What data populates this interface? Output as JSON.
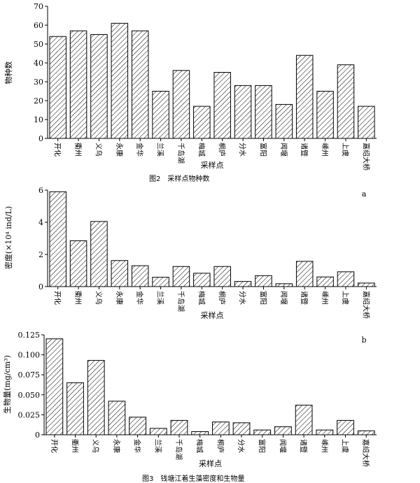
{
  "chart_data": [
    {
      "type": "bar",
      "categories": [
        "开化",
        "衢州",
        "义乌",
        "永康",
        "金华",
        "兰溪",
        "千岛湖",
        "梅城",
        "桐庐",
        "分水",
        "富阳",
        "闻堰",
        "诸暨",
        "嵊州",
        "上虞",
        "嘉绍大桥"
      ],
      "values": [
        54,
        57,
        55,
        61,
        57,
        25,
        36,
        17,
        35,
        28,
        28,
        18,
        44,
        25,
        39,
        17
      ],
      "xlabel": "采样点",
      "ylabel": "物种数",
      "ylim": [
        0,
        70
      ],
      "yticks": [
        "0",
        "10",
        "20",
        "30",
        "40",
        "50",
        "60",
        "70"
      ],
      "grid": false
    },
    {
      "type": "bar",
      "categories": [
        "开化",
        "衢州",
        "义乌",
        "永康",
        "金华",
        "兰溪",
        "千岛湖",
        "梅城",
        "桐庐",
        "分水",
        "富阳",
        "闻堰",
        "诸暨",
        "嵊州",
        "上虞",
        "嘉绍大桥"
      ],
      "values": [
        5.9,
        2.85,
        4.05,
        1.62,
        1.3,
        0.58,
        1.25,
        0.83,
        1.25,
        0.32,
        0.68,
        0.18,
        1.57,
        0.6,
        0.92,
        0.22
      ],
      "xlabel": "采样点",
      "ylabel": "密度(×10⁴ ind/L)",
      "ylim": [
        0,
        6
      ],
      "yticks": [
        "0",
        "2",
        "4",
        "6"
      ],
      "panel_label": "a",
      "grid": false
    },
    {
      "type": "bar",
      "categories": [
        "开化",
        "衢州",
        "义乌",
        "永康",
        "金华",
        "兰溪",
        "千岛湖",
        "梅城",
        "桐庐",
        "分水",
        "富阳",
        "闻堰",
        "诸暨",
        "嵊州",
        "上虞",
        "嘉绍大桥"
      ],
      "values": [
        0.12,
        0.065,
        0.093,
        0.042,
        0.022,
        0.008,
        0.018,
        0.004,
        0.016,
        0.015,
        0.006,
        0.01,
        0.037,
        0.006,
        0.018,
        0.005
      ],
      "xlabel": "采样点",
      "ylabel": "生物量(mg/cm³)",
      "ylim": [
        0,
        0.125
      ],
      "yticks": [
        "0",
        "0.025",
        "0.050",
        "0.075",
        "0.100",
        "0.125"
      ],
      "panel_label": "b",
      "grid": false
    }
  ],
  "captions": {
    "fig2": "图2　采样点物种数",
    "fig3": "图3　钱塘江着生藻密度和生物量"
  },
  "style": {
    "bar_fill": "#ffffff",
    "bar_stroke": "#000000",
    "hatch_color": "#000000"
  }
}
